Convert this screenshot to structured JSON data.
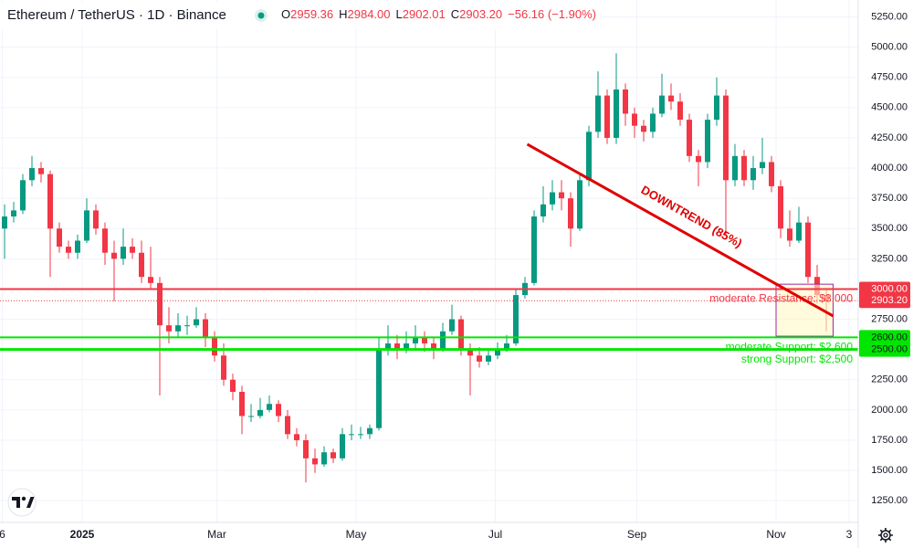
{
  "chart_data": {
    "type": "candlestick",
    "title": "Ethereum / TetherUS · 1D · Binance",
    "ohlc": {
      "keys": [
        "O",
        "H",
        "L",
        "C"
      ],
      "values": [
        2959.36,
        2984,
        2902.01,
        2903.2
      ],
      "value_labels": [
        "2959.36",
        "2984.00",
        "2902.01",
        "2903.20"
      ]
    },
    "change": "−56.16 (−1.90%)",
    "up_color": "#089981",
    "down_color": "#f23645",
    "grid": true,
    "xlim": [
      0,
      376
    ],
    "ylim": [
      1070,
      5390
    ],
    "xticks": [
      {
        "value": 1,
        "label": "6"
      },
      {
        "value": 36,
        "label": "2025"
      },
      {
        "value": 95,
        "label": "Mar"
      },
      {
        "value": 156,
        "label": "May"
      },
      {
        "value": 217,
        "label": "Jul"
      },
      {
        "value": 279,
        "label": "Sep"
      },
      {
        "value": 340,
        "label": "Nov"
      },
      {
        "value": 372,
        "label": "3"
      }
    ],
    "yticks": [
      {
        "value": 1250,
        "label": "1250.00"
      },
      {
        "value": 1500,
        "label": "1500.00"
      },
      {
        "value": 1750,
        "label": "1750.00"
      },
      {
        "value": 2000,
        "label": "2000.00"
      },
      {
        "value": 2250,
        "label": "2250.00"
      },
      {
        "value": 2500,
        "label": "2500.00"
      },
      {
        "value": 2750,
        "label": "2750.00"
      },
      {
        "value": 3000,
        "label": "3000.00"
      },
      {
        "value": 3250,
        "label": "3250.00"
      },
      {
        "value": 3500,
        "label": "3500.00"
      },
      {
        "value": 3750,
        "label": "3750.00"
      },
      {
        "value": 4000,
        "label": "4000.00"
      },
      {
        "value": 4250,
        "label": "4250.00"
      },
      {
        "value": 4500,
        "label": "4500.00"
      },
      {
        "value": 4750,
        "label": "4750.00"
      },
      {
        "value": 5000,
        "label": "5000.00"
      },
      {
        "value": 5250,
        "label": "5250.00"
      }
    ],
    "x": [
      2,
      6,
      10,
      14,
      18,
      22,
      26,
      30,
      34,
      38,
      42,
      46,
      50,
      54,
      58,
      62,
      66,
      70,
      74,
      78,
      82,
      86,
      90,
      94,
      98,
      102,
      106,
      110,
      114,
      118,
      122,
      126,
      130,
      134,
      138,
      142,
      146,
      150,
      154,
      158,
      162,
      166,
      170,
      174,
      178,
      182,
      186,
      190,
      194,
      198,
      202,
      206,
      210,
      214,
      218,
      222,
      226,
      230,
      234,
      238,
      242,
      246,
      250,
      254,
      258,
      262,
      266,
      270,
      274,
      278,
      282,
      286,
      290,
      294,
      298,
      302,
      306,
      310,
      314,
      318,
      322,
      326,
      330,
      334,
      338,
      342,
      346,
      350,
      354,
      358,
      362
    ],
    "candles": [
      [
        3500,
        3700,
        3250,
        3600
      ],
      [
        3600,
        3720,
        3550,
        3650
      ],
      [
        3650,
        3950,
        3620,
        3900
      ],
      [
        3900,
        4100,
        3850,
        4000
      ],
      [
        4000,
        4050,
        3880,
        3950
      ],
      [
        3950,
        3980,
        3100,
        3500
      ],
      [
        3500,
        3550,
        3300,
        3350
      ],
      [
        3350,
        3400,
        3250,
        3300
      ],
      [
        3300,
        3450,
        3250,
        3400
      ],
      [
        3400,
        3750,
        3380,
        3650
      ],
      [
        3650,
        3700,
        3450,
        3500
      ],
      [
        3500,
        3550,
        3200,
        3300
      ],
      [
        3300,
        3400,
        2900,
        3250
      ],
      [
        3250,
        3500,
        3200,
        3350
      ],
      [
        3350,
        3420,
        3250,
        3300
      ],
      [
        3300,
        3400,
        3050,
        3100
      ],
      [
        3100,
        3350,
        3000,
        3050
      ],
      [
        3050,
        3100,
        2120,
        2700
      ],
      [
        2700,
        2850,
        2550,
        2650
      ],
      [
        2650,
        2800,
        2600,
        2700
      ],
      [
        2700,
        2780,
        2620,
        2700
      ],
      [
        2700,
        2850,
        2680,
        2750
      ],
      [
        2750,
        2800,
        2520,
        2600
      ],
      [
        2600,
        2650,
        2400,
        2450
      ],
      [
        2450,
        2550,
        2200,
        2250
      ],
      [
        2250,
        2300,
        2080,
        2150
      ],
      [
        2150,
        2200,
        1800,
        1950
      ],
      [
        1950,
        2050,
        1900,
        1950
      ],
      [
        1950,
        2100,
        1930,
        2000
      ],
      [
        2000,
        2120,
        1980,
        2050
      ],
      [
        2050,
        2080,
        1900,
        1950
      ],
      [
        1950,
        2000,
        1760,
        1800
      ],
      [
        1800,
        1850,
        1700,
        1750
      ],
      [
        1750,
        1800,
        1400,
        1600
      ],
      [
        1600,
        1680,
        1480,
        1550
      ],
      [
        1550,
        1700,
        1530,
        1650
      ],
      [
        1650,
        1680,
        1560,
        1600
      ],
      [
        1600,
        1850,
        1580,
        1800
      ],
      [
        1800,
        1880,
        1750,
        1800
      ],
      [
        1800,
        1860,
        1760,
        1800
      ],
      [
        1800,
        1880,
        1760,
        1850
      ],
      [
        1850,
        2600,
        1830,
        2500
      ],
      [
        2500,
        2700,
        2450,
        2550
      ],
      [
        2550,
        2620,
        2420,
        2500
      ],
      [
        2500,
        2650,
        2470,
        2550
      ],
      [
        2550,
        2700,
        2500,
        2600
      ],
      [
        2600,
        2650,
        2480,
        2550
      ],
      [
        2550,
        2600,
        2420,
        2500
      ],
      [
        2500,
        2720,
        2480,
        2650
      ],
      [
        2650,
        2870,
        2620,
        2750
      ],
      [
        2750,
        2780,
        2450,
        2500
      ],
      [
        2500,
        2550,
        2120,
        2450
      ],
      [
        2450,
        2520,
        2350,
        2400
      ],
      [
        2400,
        2500,
        2370,
        2450
      ],
      [
        2450,
        2560,
        2420,
        2500
      ],
      [
        2500,
        2620,
        2480,
        2550
      ],
      [
        2550,
        3000,
        2530,
        2950
      ],
      [
        2950,
        3100,
        2920,
        3050
      ],
      [
        3050,
        3650,
        3030,
        3600
      ],
      [
        3600,
        3850,
        3550,
        3700
      ],
      [
        3700,
        3900,
        3650,
        3800
      ],
      [
        3800,
        3900,
        3650,
        3750
      ],
      [
        3750,
        3800,
        3350,
        3500
      ],
      [
        3500,
        3950,
        3480,
        3900
      ],
      [
        3900,
        4350,
        3850,
        4300
      ],
      [
        4300,
        4800,
        4250,
        4600
      ],
      [
        4600,
        4650,
        4200,
        4250
      ],
      [
        4250,
        4950,
        4200,
        4650
      ],
      [
        4650,
        4700,
        4350,
        4450
      ],
      [
        4450,
        4500,
        4250,
        4350
      ],
      [
        4350,
        4400,
        4220,
        4300
      ],
      [
        4300,
        4500,
        4250,
        4450
      ],
      [
        4450,
        4780,
        4420,
        4600
      ],
      [
        4600,
        4700,
        4480,
        4550
      ],
      [
        4550,
        4620,
        4350,
        4400
      ],
      [
        4400,
        4450,
        4050,
        4100
      ],
      [
        4100,
        4150,
        3850,
        4050
      ],
      [
        4050,
        4450,
        4000,
        4400
      ],
      [
        4400,
        4750,
        4350,
        4600
      ],
      [
        4600,
        4650,
        3450,
        3900
      ],
      [
        3900,
        4200,
        3850,
        4100
      ],
      [
        4100,
        4150,
        3850,
        3900
      ],
      [
        3900,
        4100,
        3820,
        4000
      ],
      [
        4000,
        4250,
        3950,
        4050
      ],
      [
        4050,
        4100,
        3800,
        3850
      ],
      [
        3850,
        3900,
        3420,
        3500
      ],
      [
        3500,
        3650,
        3350,
        3400
      ],
      [
        3400,
        3680,
        3380,
        3550
      ],
      [
        3550,
        3600,
        3050,
        3100
      ],
      [
        3100,
        3200,
        2880,
        2950
      ],
      [
        2950,
        3000,
        2650,
        2903.2
      ]
    ],
    "last_price": {
      "value": 2903.2,
      "label": "2903.20",
      "color": "#f23645"
    },
    "levels": [
      {
        "price": 3000,
        "label": "3000.00",
        "color": "#f23645",
        "annotation": "moderate Resistance: $3,000"
      },
      {
        "price": 2600,
        "label": "2600.00",
        "color": "#00e600",
        "annotation": "moderate Support: $2,600"
      },
      {
        "price": 2500,
        "label": "2500.00",
        "color": "#00e600",
        "annotation": "strong Support: $2,500"
      }
    ],
    "trendline": {
      "x": [
        231,
        365
      ],
      "y": [
        4197,
        2777
      ],
      "color": "#e00000",
      "label": "DOWNTREND (85%)"
    },
    "entry_zone": {
      "x": [
        340,
        365
      ],
      "y": [
        2610,
        3040
      ]
    }
  }
}
